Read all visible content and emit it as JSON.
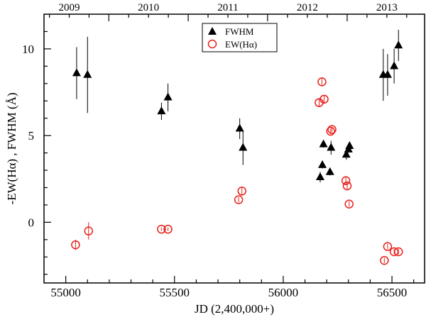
{
  "chart_data": {
    "type": "scatter",
    "xlabel": "JD (2,400,000+)",
    "ylabel": "-EW(Hα) , FWHM (Å)",
    "xlim": [
      54900,
      56650
    ],
    "ylim": [
      -3.5,
      12
    ],
    "x_ticks": [
      55000,
      55500,
      56000,
      56500
    ],
    "x_tick_labels": [
      "55000",
      "55500",
      "56000",
      "56500"
    ],
    "y_ticks": [
      0,
      5,
      10
    ],
    "y_tick_labels": [
      "0",
      "5",
      "10"
    ],
    "top_axis": {
      "ticks": [
        54834,
        55198,
        55563,
        55928,
        56294,
        56659
      ],
      "labels": [
        "2009",
        "2010",
        "2011",
        "2012",
        "2013",
        ""
      ]
    },
    "grid": false,
    "legend": {
      "placement": "top-center",
      "entries": [
        {
          "label": "FWHM",
          "marker": "triangle",
          "color": "#000000"
        },
        {
          "label": "EW(Hα)",
          "marker": "open-circle",
          "color": "#e8201a"
        }
      ]
    },
    "series": [
      {
        "name": "FWHM",
        "marker": "triangle",
        "color": "#000000",
        "points": [
          {
            "x": 55050,
            "y": 8.6,
            "err": 1.5
          },
          {
            "x": 55100,
            "y": 8.5,
            "err": 2.2
          },
          {
            "x": 55440,
            "y": 6.4,
            "err": 0.5
          },
          {
            "x": 55470,
            "y": 7.2,
            "err": 0.8
          },
          {
            "x": 55800,
            "y": 5.4,
            "err": 0.6
          },
          {
            "x": 55815,
            "y": 4.3,
            "err": 1.0
          },
          {
            "x": 56170,
            "y": 2.6,
            "err": 0.3
          },
          {
            "x": 56180,
            "y": 3.3,
            "err": 0.2
          },
          {
            "x": 56185,
            "y": 4.5,
            "err": 0.2
          },
          {
            "x": 56215,
            "y": 2.9,
            "err": 0.2
          },
          {
            "x": 56220,
            "y": 4.3,
            "err": 0.4
          },
          {
            "x": 56290,
            "y": 3.9,
            "err": 0.3
          },
          {
            "x": 56300,
            "y": 4.2,
            "err": 0.2
          },
          {
            "x": 56305,
            "y": 4.4,
            "err": 0.2
          },
          {
            "x": 56460,
            "y": 8.5,
            "err": 1.5
          },
          {
            "x": 56480,
            "y": 8.5,
            "err": 1.2
          },
          {
            "x": 56510,
            "y": 9.0,
            "err": 1.0
          },
          {
            "x": 56530,
            "y": 10.2,
            "err": 0.9
          }
        ]
      },
      {
        "name": "EW(Hα)",
        "marker": "open-circle",
        "color": "#e8201a",
        "points": [
          {
            "x": 55045,
            "y": -1.3,
            "err": 0.3
          },
          {
            "x": 55105,
            "y": -0.5,
            "err": 0.5
          },
          {
            "x": 55440,
            "y": -0.4,
            "err": 0.1
          },
          {
            "x": 55470,
            "y": -0.4,
            "err": 0.1
          },
          {
            "x": 55795,
            "y": 1.3,
            "err": 0.15
          },
          {
            "x": 55810,
            "y": 1.8,
            "err": 0.2
          },
          {
            "x": 56165,
            "y": 6.9,
            "err": 0.2
          },
          {
            "x": 56178,
            "y": 8.1,
            "err": 0.2
          },
          {
            "x": 56188,
            "y": 7.1,
            "err": 0.2
          },
          {
            "x": 56218,
            "y": 5.25,
            "err": 0.15
          },
          {
            "x": 56224,
            "y": 5.35,
            "err": 0.15
          },
          {
            "x": 56288,
            "y": 2.4,
            "err": 0.2
          },
          {
            "x": 56294,
            "y": 2.1,
            "err": 0.2
          },
          {
            "x": 56303,
            "y": 1.05,
            "err": 0.15
          },
          {
            "x": 56465,
            "y": -2.2,
            "err": 0.15
          },
          {
            "x": 56480,
            "y": -1.4,
            "err": 0.15
          },
          {
            "x": 56510,
            "y": -1.7,
            "err": 0.15
          },
          {
            "x": 56530,
            "y": -1.7,
            "err": 0.15
          }
        ]
      }
    ]
  }
}
